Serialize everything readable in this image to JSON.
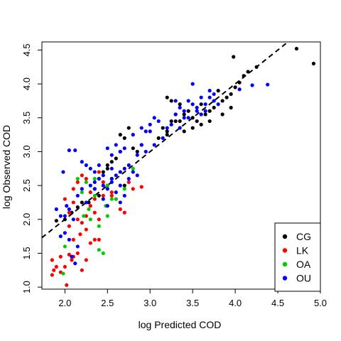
{
  "chart_data": {
    "type": "scatter",
    "title": "",
    "xlabel": "log Predicted COD",
    "ylabel": "log Observed COD",
    "xlim": [
      1.73,
      5.0
    ],
    "ylim": [
      0.97,
      4.62
    ],
    "x_ticks": [
      "2.0",
      "2.5",
      "3.0",
      "3.5",
      "4.0",
      "4.5",
      "5.0"
    ],
    "y_ticks": [
      "1.0",
      "1.5",
      "2.0",
      "2.5",
      "3.0",
      "3.5",
      "4.0",
      "4.5"
    ],
    "reference_line": {
      "style": "dashed",
      "color": "#000000",
      "intercept": 0.0,
      "slope": 1.0
    },
    "legend_position": "bottom-right",
    "series": [
      {
        "name": "CG",
        "color": "#000000",
        "points": [
          [
            1.9,
            1.98
          ],
          [
            2.0,
            2.0
          ],
          [
            2.08,
            2.1
          ],
          [
            2.15,
            2.18
          ],
          [
            2.2,
            2.25
          ],
          [
            2.28,
            2.25
          ],
          [
            2.35,
            2.45
          ],
          [
            2.4,
            2.6
          ],
          [
            2.45,
            2.7
          ],
          [
            2.5,
            2.8
          ],
          [
            2.55,
            2.6
          ],
          [
            2.6,
            2.9
          ],
          [
            2.65,
            3.0
          ],
          [
            2.7,
            3.2
          ],
          [
            2.75,
            3.35
          ],
          [
            2.8,
            3.05
          ],
          [
            2.85,
            3.0
          ],
          [
            2.55,
            2.85
          ],
          [
            2.65,
            3.25
          ],
          [
            2.9,
            3.1
          ],
          [
            3.1,
            3.2
          ],
          [
            3.15,
            3.35
          ],
          [
            3.2,
            3.8
          ],
          [
            3.25,
            3.75
          ],
          [
            3.2,
            3.3
          ],
          [
            3.25,
            3.45
          ],
          [
            3.3,
            3.55
          ],
          [
            3.35,
            3.7
          ],
          [
            3.4,
            3.55
          ],
          [
            3.45,
            3.6
          ],
          [
            3.5,
            3.5
          ],
          [
            3.55,
            3.45
          ],
          [
            3.6,
            3.7
          ],
          [
            3.65,
            3.55
          ],
          [
            3.7,
            3.6
          ],
          [
            3.75,
            3.65
          ],
          [
            3.8,
            3.9
          ],
          [
            3.85,
            3.75
          ],
          [
            3.9,
            3.8
          ],
          [
            3.95,
            3.85
          ],
          [
            3.98,
            4.4
          ],
          [
            4.0,
            3.95
          ],
          [
            4.05,
            4.02
          ],
          [
            4.1,
            4.12
          ],
          [
            4.15,
            4.18
          ],
          [
            4.25,
            4.25
          ],
          [
            4.72,
            4.52
          ],
          [
            4.92,
            4.3
          ],
          [
            3.4,
            3.3
          ],
          [
            3.3,
            3.45
          ],
          [
            3.6,
            3.4
          ],
          [
            3.7,
            3.45
          ],
          [
            3.85,
            3.55
          ],
          [
            3.95,
            3.65
          ],
          [
            3.5,
            3.35
          ],
          [
            3.35,
            3.45
          ],
          [
            3.2,
            3.25
          ],
          [
            2.5,
            2.75
          ],
          [
            2.7,
            2.5
          ],
          [
            2.4,
            2.35
          ]
        ]
      },
      {
        "name": "LK",
        "color": "#ff0000",
        "points": [
          [
            1.85,
            1.18
          ],
          [
            1.87,
            1.25
          ],
          [
            1.9,
            1.3
          ],
          [
            1.95,
            1.22
          ],
          [
            2.0,
            1.3
          ],
          [
            2.05,
            1.48
          ],
          [
            1.85,
            1.4
          ],
          [
            1.95,
            1.45
          ],
          [
            2.02,
            1.03
          ],
          [
            2.08,
            1.4
          ],
          [
            2.1,
            1.45
          ],
          [
            2.15,
            1.5
          ],
          [
            2.2,
            1.25
          ],
          [
            2.25,
            1.4
          ],
          [
            2.3,
            1.65
          ],
          [
            2.35,
            1.7
          ],
          [
            2.4,
            1.7
          ],
          [
            2.0,
            2.3
          ],
          [
            2.05,
            2.1
          ],
          [
            2.1,
            2.25
          ],
          [
            2.15,
            2.0
          ],
          [
            2.2,
            1.95
          ],
          [
            2.25,
            2.05
          ],
          [
            2.3,
            2.2
          ],
          [
            2.35,
            2.1
          ],
          [
            2.4,
            2.0
          ],
          [
            2.45,
            2.35
          ],
          [
            2.5,
            2.5
          ],
          [
            2.55,
            2.4
          ],
          [
            2.6,
            2.3
          ],
          [
            2.65,
            2.15
          ],
          [
            2.7,
            2.1
          ],
          [
            2.75,
            2.55
          ],
          [
            2.8,
            2.45
          ],
          [
            2.9,
            2.48
          ],
          [
            2.1,
            2.45
          ],
          [
            2.15,
            2.55
          ],
          [
            2.2,
            2.65
          ],
          [
            2.25,
            2.6
          ],
          [
            2.3,
            2.4
          ],
          [
            2.35,
            2.3
          ],
          [
            2.4,
            2.7
          ],
          [
            2.45,
            2.55
          ],
          [
            2.55,
            2.35
          ],
          [
            2.18,
            1.78
          ],
          [
            2.05,
            1.9
          ],
          [
            2.1,
            1.7
          ],
          [
            2.25,
            1.85
          ]
        ]
      },
      {
        "name": "OA",
        "color": "#00cc00",
        "points": [
          [
            1.98,
            1.2
          ],
          [
            2.0,
            1.6
          ],
          [
            2.15,
            2.6
          ],
          [
            2.2,
            2.4
          ],
          [
            2.25,
            2.55
          ],
          [
            2.35,
            2.6
          ],
          [
            2.4,
            1.55
          ],
          [
            2.45,
            1.5
          ],
          [
            2.5,
            2.5
          ],
          [
            2.55,
            2.3
          ],
          [
            2.3,
            2.0
          ],
          [
            2.4,
            1.9
          ],
          [
            2.48,
            2.2
          ],
          [
            2.5,
            2.05
          ],
          [
            2.6,
            2.3
          ],
          [
            2.7,
            2.45
          ],
          [
            2.8,
            2.75
          ],
          [
            2.35,
            2.35
          ],
          [
            2.28,
            2.15
          ],
          [
            2.22,
            2.05
          ]
        ]
      },
      {
        "name": "OU",
        "color": "#0000ff",
        "points": [
          [
            1.9,
            2.15
          ],
          [
            1.95,
            2.05
          ],
          [
            2.0,
            2.05
          ],
          [
            2.05,
            2.15
          ],
          [
            2.1,
            2.0
          ],
          [
            2.05,
            1.7
          ],
          [
            2.08,
            1.45
          ],
          [
            2.12,
            1.35
          ],
          [
            2.15,
            1.6
          ],
          [
            1.95,
            1.75
          ],
          [
            2.0,
            1.8
          ],
          [
            2.02,
            2.2
          ],
          [
            2.05,
            3.02
          ],
          [
            2.12,
            3.02
          ],
          [
            2.2,
            2.85
          ],
          [
            2.25,
            2.8
          ],
          [
            2.3,
            2.75
          ],
          [
            2.35,
            2.7
          ],
          [
            2.4,
            2.6
          ],
          [
            2.45,
            2.5
          ],
          [
            2.5,
            2.45
          ],
          [
            2.55,
            2.55
          ],
          [
            2.6,
            2.65
          ],
          [
            2.65,
            2.5
          ],
          [
            2.7,
            2.35
          ],
          [
            2.75,
            2.8
          ],
          [
            2.8,
            2.7
          ],
          [
            2.85,
            2.95
          ],
          [
            2.9,
            3.1
          ],
          [
            2.95,
            3.3
          ],
          [
            3.0,
            3.4
          ],
          [
            3.05,
            3.5
          ],
          [
            2.5,
            3.05
          ],
          [
            2.55,
            2.95
          ],
          [
            2.6,
            3.1
          ],
          [
            2.65,
            3.0
          ],
          [
            2.7,
            3.05
          ],
          [
            2.4,
            2.8
          ],
          [
            2.45,
            2.65
          ],
          [
            2.55,
            2.75
          ],
          [
            2.65,
            2.7
          ],
          [
            2.75,
            2.6
          ],
          [
            2.8,
            3.25
          ],
          [
            2.9,
            3.35
          ],
          [
            3.0,
            3.3
          ],
          [
            3.1,
            3.45
          ],
          [
            3.2,
            3.35
          ],
          [
            3.3,
            3.55
          ],
          [
            3.35,
            3.65
          ],
          [
            3.4,
            3.6
          ],
          [
            3.45,
            3.75
          ],
          [
            3.5,
            3.7
          ],
          [
            3.55,
            3.65
          ],
          [
            3.6,
            3.55
          ],
          [
            3.65,
            3.7
          ],
          [
            3.7,
            3.8
          ],
          [
            3.75,
            3.75
          ],
          [
            3.8,
            3.7
          ],
          [
            3.5,
            4.0
          ],
          [
            3.4,
            3.5
          ],
          [
            3.3,
            3.75
          ],
          [
            3.6,
            3.8
          ],
          [
            3.7,
            3.9
          ],
          [
            4.05,
            3.92
          ],
          [
            4.2,
            3.98
          ],
          [
            4.38,
            3.99
          ],
          [
            2.25,
            2.25
          ],
          [
            2.3,
            2.5
          ],
          [
            2.35,
            2.45
          ],
          [
            2.45,
            2.3
          ],
          [
            2.5,
            2.2
          ],
          [
            2.6,
            2.4
          ],
          [
            2.65,
            2.25
          ],
          [
            1.98,
            2.7
          ],
          [
            2.15,
            2.35
          ],
          [
            2.2,
            2.45
          ],
          [
            2.35,
            2.55
          ],
          [
            2.55,
            2.6
          ],
          [
            2.7,
            2.75
          ],
          [
            2.85,
            2.65
          ],
          [
            2.95,
            3.0
          ],
          [
            3.05,
            3.1
          ],
          [
            3.15,
            3.2
          ],
          [
            3.25,
            3.4
          ],
          [
            3.35,
            3.35
          ],
          [
            3.45,
            3.5
          ],
          [
            3.55,
            3.6
          ],
          [
            3.65,
            3.6
          ],
          [
            3.75,
            3.85
          ]
        ]
      }
    ]
  }
}
